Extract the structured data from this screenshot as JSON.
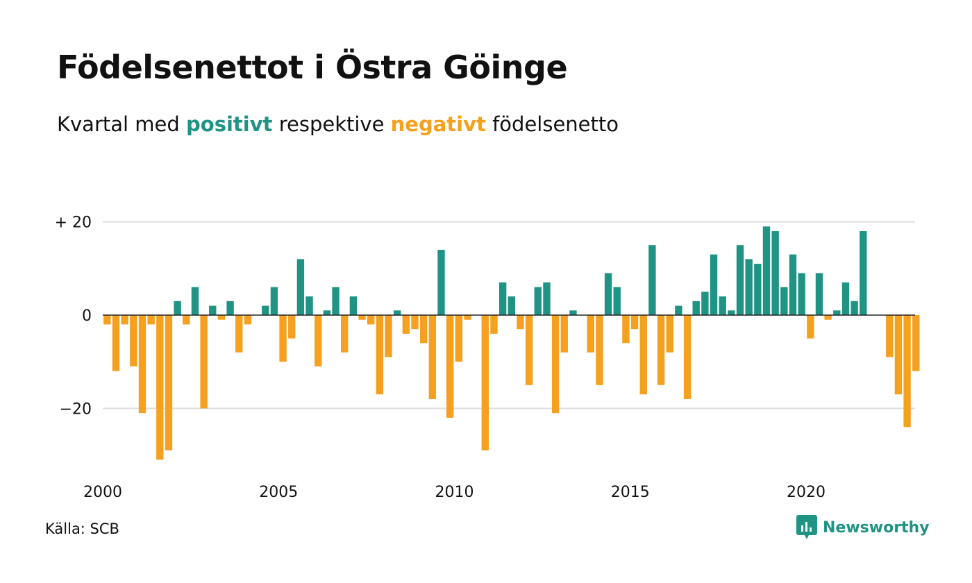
{
  "title": "Födelsenettot i Östra Göinge",
  "subtitle": {
    "prefix": "Kvartal med ",
    "positive": "positivt",
    "middle": " respektive ",
    "negative": "negativt",
    "suffix": " födelsenetto"
  },
  "source": "Källa: SCB",
  "brand": "Newsworthy",
  "colors": {
    "positive": "#1f9484",
    "negative": "#f5a01e",
    "grid": "#dddddd",
    "baseline": "#222222"
  },
  "chart_data": {
    "type": "bar",
    "x_start": "2000 Q1",
    "xlim": [
      2000,
      2023
    ],
    "ylim": [
      -31,
      20
    ],
    "y_ticks": [
      {
        "value": 20,
        "label": "+ 20"
      },
      {
        "value": 0,
        "label": "0"
      },
      {
        "value": -20,
        "label": "−20"
      }
    ],
    "x_ticks": [
      {
        "value": 2000,
        "label": "2000"
      },
      {
        "value": 2005,
        "label": "2005"
      },
      {
        "value": 2010,
        "label": "2010"
      },
      {
        "value": 2015,
        "label": "2015"
      },
      {
        "value": 2020,
        "label": "2020"
      }
    ],
    "values": [
      -2,
      -12,
      -2,
      -11,
      -21,
      -2,
      -31,
      -29,
      3,
      -2,
      6,
      -20,
      2,
      -1,
      3,
      -8,
      -2,
      0,
      2,
      6,
      -10,
      -5,
      12,
      4,
      -11,
      1,
      6,
      -8,
      4,
      -1,
      -2,
      -17,
      -9,
      1,
      -4,
      -3,
      -6,
      -18,
      14,
      -22,
      -10,
      -1,
      0,
      -29,
      -4,
      7,
      4,
      -3,
      -15,
      6,
      7,
      -21,
      -8,
      1,
      0,
      -8,
      -15,
      9,
      6,
      -6,
      -3,
      -17,
      15,
      -15,
      -8,
      2,
      -18,
      3,
      5,
      13,
      4,
      1,
      15,
      12,
      11,
      19,
      18,
      6,
      13,
      9,
      -5,
      9,
      -1,
      1,
      7,
      3,
      18,
      0,
      0,
      -9,
      -17,
      -24,
      -12
    ]
  }
}
